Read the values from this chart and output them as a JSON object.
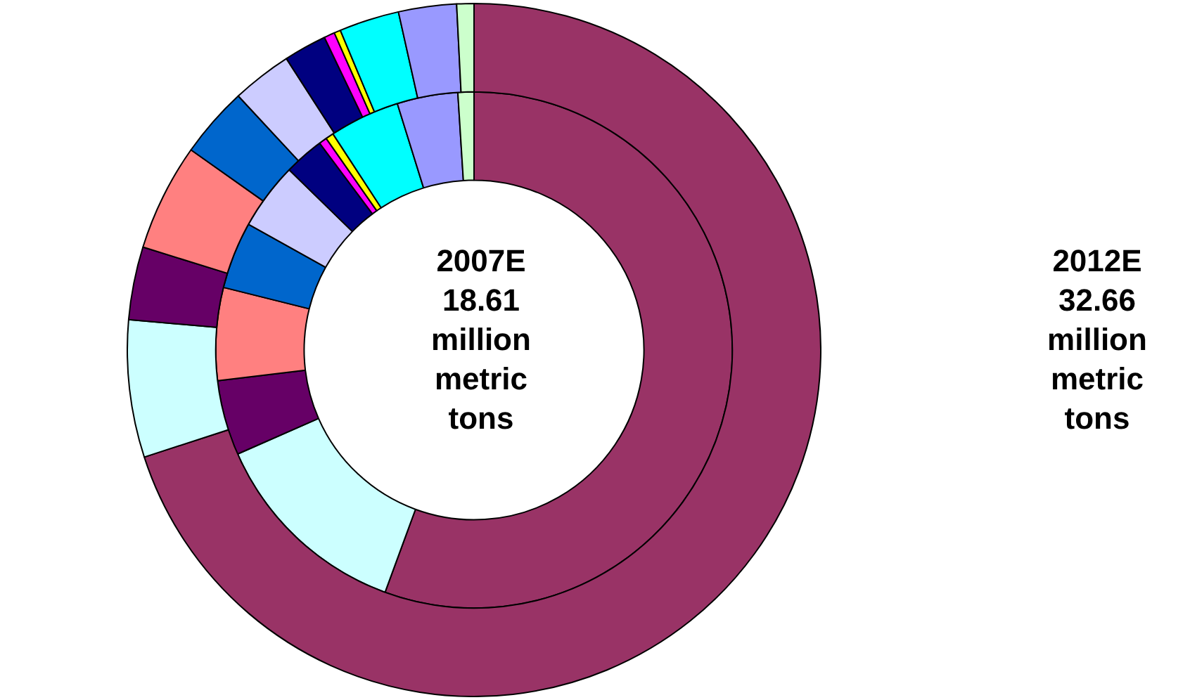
{
  "chart_data": {
    "type": "donut",
    "categories": [
      null,
      null,
      null,
      null,
      null,
      null,
      null,
      null,
      null,
      null,
      null,
      null
    ],
    "colors": [
      "#993366",
      "#ccffff",
      "#660066",
      "#ff8080",
      "#0066cc",
      "#ccccff",
      "#000080",
      "#ff00ff",
      "#ffff00",
      "#00ffff",
      "#9999ff",
      "#ccffcc"
    ],
    "series": [
      {
        "values": [
          70,
          6.4,
          3.4,
          5,
          3.3,
          2.8,
          2,
          0.5,
          0.3,
          2.8,
          2.7,
          0.8
        ]
      },
      {
        "values": [
          55.6,
          12.8,
          4.7,
          5.8,
          4.2,
          4.2,
          2.5,
          0.5,
          0.5,
          4.4,
          3.8,
          1
        ]
      }
    ],
    "annotations": [
      "2007E\n18.61\nmillion\nmetric\ntons",
      "2012E\n32.66\nmillion\nmetric\ntons"
    ],
    "legend": false
  }
}
